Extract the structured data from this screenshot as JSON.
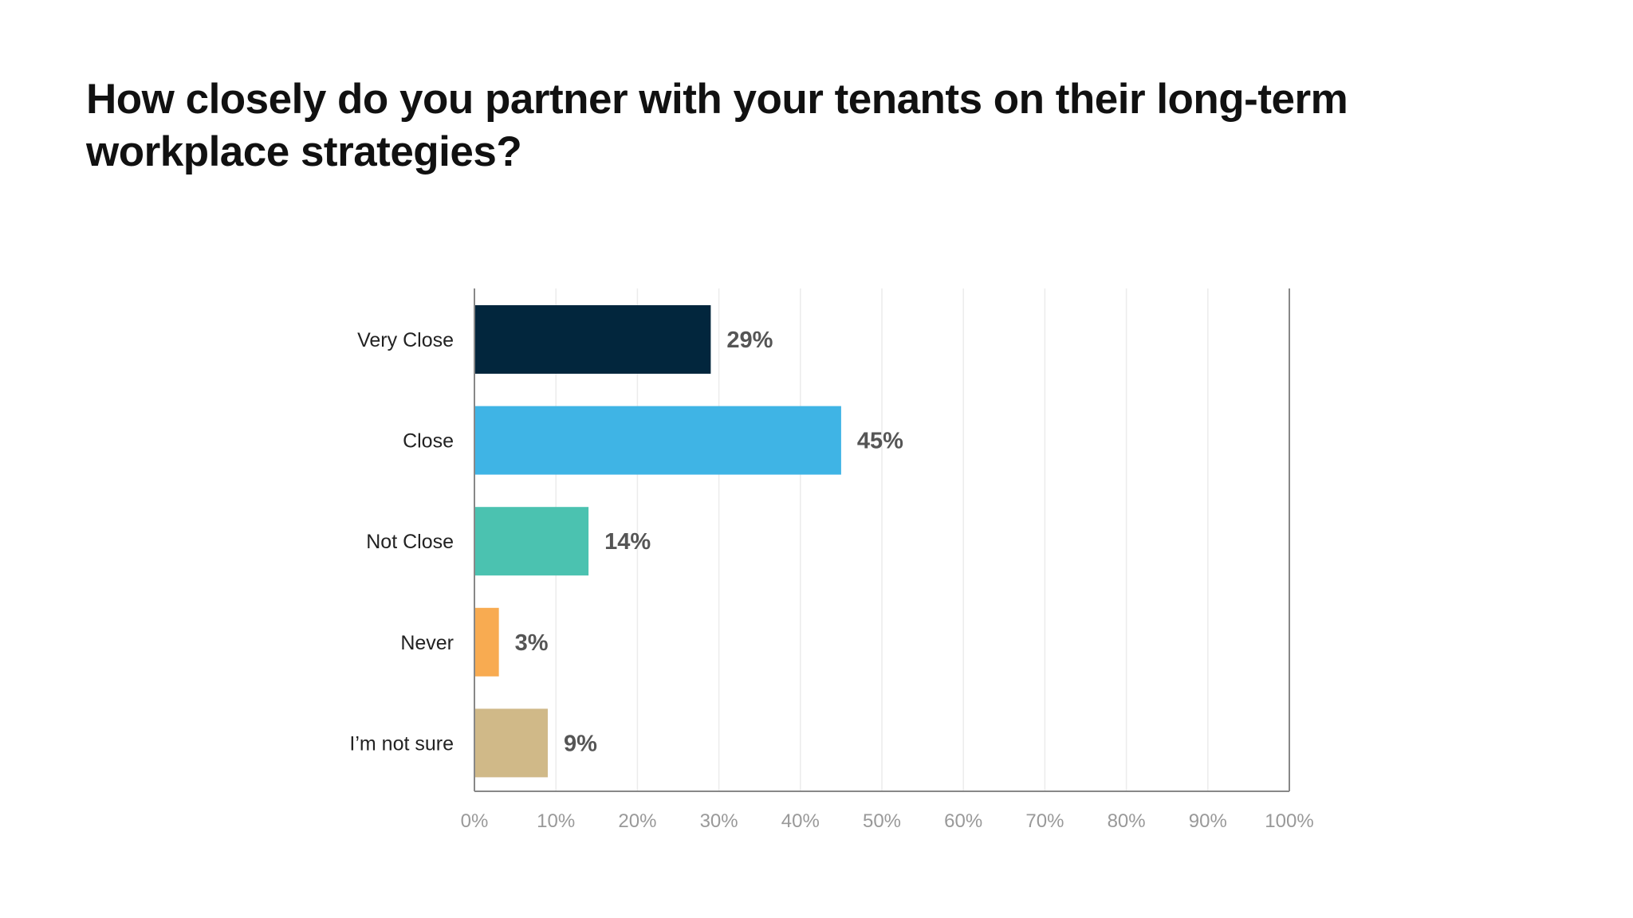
{
  "chart_data": {
    "type": "bar",
    "orientation": "horizontal",
    "title": "How closely do you partner with your tenants on their long-term workplace strategies?",
    "categories": [
      "Very Close",
      "Close",
      "Not Close",
      "Never",
      "I’m not sure"
    ],
    "values": [
      29,
      45,
      14,
      3,
      9
    ],
    "data_labels": [
      "29%",
      "45%",
      "14%",
      "3%",
      "9%"
    ],
    "colors": [
      "#02263d",
      "#3fb4e5",
      "#4bc2b0",
      "#f8ab51",
      "#d0b988"
    ],
    "xlim": [
      0,
      100
    ],
    "xticks": [
      "0%",
      "10%",
      "20%",
      "30%",
      "40%",
      "50%",
      "60%",
      "70%",
      "80%",
      "90%",
      "100%"
    ],
    "xlabel": "",
    "ylabel": "",
    "grid": "vertical",
    "legend": "none"
  }
}
